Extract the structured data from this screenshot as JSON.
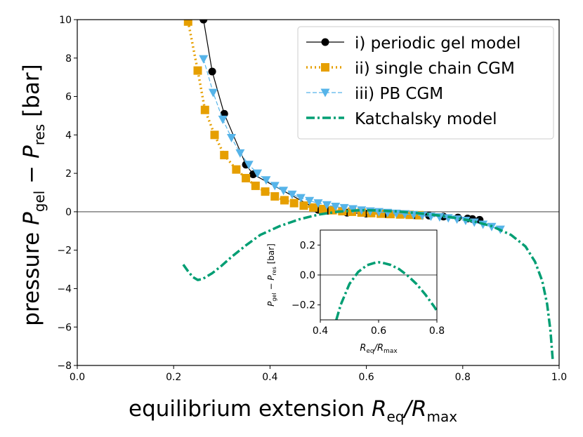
{
  "chart_data": [
    {
      "type": "line",
      "title": "",
      "xlabel": "equilibrium extension R_eq/R_max",
      "ylabel": "pressure P_gel − P_res [bar]",
      "xlim": [
        0.0,
        1.0
      ],
      "ylim": [
        -8,
        10
      ],
      "xticks": [
        0.0,
        0.2,
        0.4,
        0.6,
        0.8,
        1.0
      ],
      "yticks": [
        -8,
        -6,
        -4,
        -2,
        0,
        2,
        4,
        6,
        8,
        10
      ],
      "xtick_labels": [
        "0.0",
        "0.2",
        "0.4",
        "0.6",
        "0.8",
        "1.0"
      ],
      "ytick_labels": [
        "−8",
        "−6",
        "−4",
        "−2",
        "0",
        "2",
        "4",
        "6",
        "8",
        "10"
      ],
      "grid": false,
      "hline_at_zero": true,
      "legend_position": "top-right",
      "series": [
        {
          "name": "i) periodic gel model",
          "color": "#000000",
          "marker": "circle",
          "line_style": "solid",
          "x": [
            0.262,
            0.28,
            0.305,
            0.35,
            0.365,
            0.5,
            0.52,
            0.56,
            0.6,
            0.64,
            0.67,
            0.7,
            0.73,
            0.76,
            0.79,
            0.81,
            0.82,
            0.835
          ],
          "y": [
            10.0,
            7.3,
            5.1,
            2.45,
            1.95,
            0.1,
            0.05,
            -0.05,
            -0.1,
            -0.12,
            -0.15,
            -0.18,
            -0.2,
            -0.25,
            -0.3,
            -0.35,
            -0.38,
            -0.42
          ]
        },
        {
          "name": "ii) single chain CGM",
          "color": "#E69F00",
          "marker": "square",
          "line_style": "dotted",
          "x": [
            0.23,
            0.25,
            0.265,
            0.285,
            0.305,
            0.33,
            0.35,
            0.37,
            0.39,
            0.41,
            0.43,
            0.45,
            0.47,
            0.49,
            0.51,
            0.53,
            0.55,
            0.57,
            0.59,
            0.61,
            0.63,
            0.65,
            0.67,
            0.69,
            0.71
          ],
          "y": [
            9.9,
            7.35,
            5.3,
            4.0,
            2.95,
            2.2,
            1.75,
            1.35,
            1.05,
            0.8,
            0.6,
            0.45,
            0.32,
            0.22,
            0.14,
            0.08,
            0.03,
            0.0,
            -0.04,
            -0.07,
            -0.1,
            -0.12,
            -0.14,
            -0.16,
            -0.18
          ]
        },
        {
          "name": "iii) PB CGM",
          "color": "#56B4E9",
          "marker": "triangle-down",
          "line_style": "dashed",
          "x": [
            0.262,
            0.282,
            0.302,
            0.32,
            0.338,
            0.356,
            0.374,
            0.392,
            0.41,
            0.428,
            0.446,
            0.464,
            0.482,
            0.5,
            0.518,
            0.536,
            0.554,
            0.572,
            0.59,
            0.608,
            0.626,
            0.644,
            0.662,
            0.68,
            0.698,
            0.716,
            0.734,
            0.752,
            0.77,
            0.788,
            0.806,
            0.824,
            0.842,
            0.86,
            0.878
          ],
          "y": [
            7.95,
            6.2,
            4.8,
            3.85,
            3.05,
            2.45,
            2.0,
            1.65,
            1.35,
            1.1,
            0.9,
            0.72,
            0.57,
            0.45,
            0.35,
            0.27,
            0.2,
            0.14,
            0.08,
            0.03,
            -0.01,
            -0.05,
            -0.09,
            -0.12,
            -0.16,
            -0.2,
            -0.24,
            -0.28,
            -0.33,
            -0.39,
            -0.46,
            -0.55,
            -0.66,
            -0.78,
            -0.92
          ]
        },
        {
          "name": "Katchalsky model",
          "color": "#009E73",
          "marker": "none",
          "line_style": "dashdot",
          "x": [
            0.22,
            0.23,
            0.24,
            0.25,
            0.26,
            0.28,
            0.3,
            0.32,
            0.35,
            0.38,
            0.42,
            0.46,
            0.5,
            0.54,
            0.58,
            0.6,
            0.62,
            0.66,
            0.7,
            0.74,
            0.78,
            0.82,
            0.86,
            0.9,
            0.93,
            0.95,
            0.965,
            0.975,
            0.982,
            0.987
          ],
          "y": [
            -2.75,
            -3.1,
            -3.4,
            -3.55,
            -3.5,
            -3.2,
            -2.8,
            -2.35,
            -1.75,
            -1.2,
            -0.75,
            -0.4,
            -0.15,
            0.0,
            0.07,
            0.08,
            0.07,
            0.02,
            -0.06,
            -0.16,
            -0.3,
            -0.48,
            -0.75,
            -1.2,
            -1.8,
            -2.6,
            -3.6,
            -4.8,
            -6.2,
            -7.8
          ]
        }
      ]
    },
    {
      "type": "line",
      "title": "",
      "xlabel": "R_eq/R_max",
      "ylabel": "P_gel − P_res [bar]",
      "xlim": [
        0.4,
        0.8
      ],
      "ylim": [
        -0.3,
        0.3
      ],
      "xticks": [
        0.4,
        0.6,
        0.8
      ],
      "yticks": [
        -0.2,
        0.0,
        0.2
      ],
      "xtick_labels": [
        "0.4",
        "0.6",
        "0.8"
      ],
      "ytick_labels": [
        "−0.2",
        "0.0",
        "0.2"
      ],
      "grid": false,
      "hline_at_zero": true,
      "series": [
        {
          "name": "Katchalsky model",
          "color": "#009E73",
          "marker": "none",
          "line_style": "dashdot",
          "x": [
            0.455,
            0.47,
            0.5,
            0.53,
            0.56,
            0.59,
            0.6,
            0.61,
            0.64,
            0.67,
            0.7,
            0.73,
            0.76,
            0.79,
            0.8
          ],
          "y": [
            -0.3,
            -0.2,
            -0.06,
            0.02,
            0.065,
            0.083,
            0.085,
            0.083,
            0.068,
            0.04,
            -0.005,
            -0.06,
            -0.13,
            -0.21,
            -0.24
          ]
        }
      ]
    }
  ]
}
